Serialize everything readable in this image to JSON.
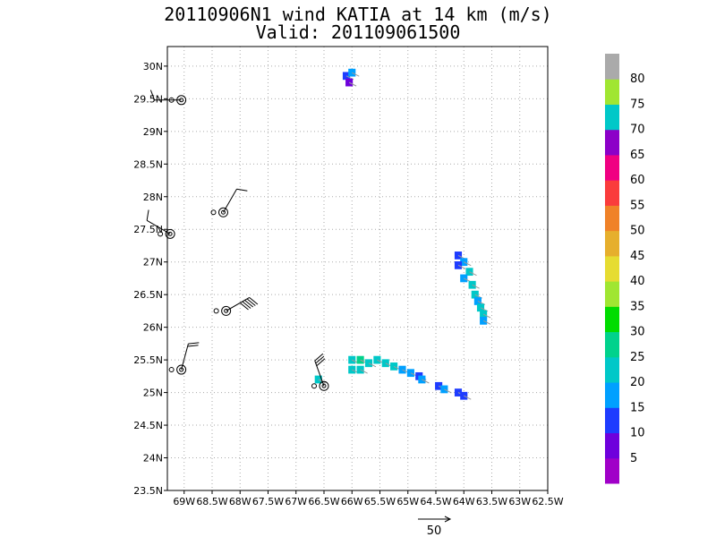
{
  "title_line1": "20110906N1 wind KATIA at 14 km (m/s)",
  "title_line2": "Valid: 201109061500",
  "chart_data": {
    "type": "heatmap",
    "title": "20110906N1 wind KATIA at 14 km (m/s)",
    "subtitle": "Valid: 201109061500",
    "xlim": [
      -69.3,
      -62.5
    ],
    "ylim": [
      23.5,
      30.3
    ],
    "grid": true,
    "x_ticks": [
      {
        "v": -69.0,
        "label": "69W"
      },
      {
        "v": -68.5,
        "label": "68.5W"
      },
      {
        "v": -68.0,
        "label": "68W"
      },
      {
        "v": -67.5,
        "label": "67.5W"
      },
      {
        "v": -67.0,
        "label": "67W"
      },
      {
        "v": -66.5,
        "label": "66.5W"
      },
      {
        "v": -66.0,
        "label": "66W"
      },
      {
        "v": -65.5,
        "label": "65.5W"
      },
      {
        "v": -65.0,
        "label": "65W"
      },
      {
        "v": -64.5,
        "label": "64.5W"
      },
      {
        "v": -64.0,
        "label": "64W"
      },
      {
        "v": -63.5,
        "label": "63.5W"
      },
      {
        "v": -63.0,
        "label": "63W"
      },
      {
        "v": -62.5,
        "label": "62.5W"
      }
    ],
    "y_ticks": [
      {
        "v": 23.5,
        "label": "23.5N"
      },
      {
        "v": 24.0,
        "label": "24N"
      },
      {
        "v": 24.5,
        "label": "24.5N"
      },
      {
        "v": 25.0,
        "label": "25N"
      },
      {
        "v": 25.5,
        "label": "25.5N"
      },
      {
        "v": 26.0,
        "label": "26N"
      },
      {
        "v": 26.5,
        "label": "26.5N"
      },
      {
        "v": 27.0,
        "label": "27N"
      },
      {
        "v": 27.5,
        "label": "27.5N"
      },
      {
        "v": 28.0,
        "label": "28N"
      },
      {
        "v": 28.5,
        "label": "28.5N"
      },
      {
        "v": 29.0,
        "label": "29N"
      },
      {
        "v": 29.5,
        "label": "29.5N"
      },
      {
        "v": 30.0,
        "label": "30N"
      }
    ],
    "colorbar": {
      "labels": [
        "5",
        "10",
        "15",
        "20",
        "25",
        "30",
        "35",
        "40",
        "45",
        "50",
        "55",
        "60",
        "65",
        "70",
        "75",
        "80"
      ],
      "colors": [
        "#a000c8",
        "#6e00dc",
        "#1e3cff",
        "#00a0ff",
        "#00c8c8",
        "#00d28c",
        "#00dc00",
        "#a0e632",
        "#e6dc32",
        "#e6af2d",
        "#f08228",
        "#fa3c3c",
        "#f00082",
        "#8c00c8",
        "#00c8c8",
        "#a0e632",
        "#aaaaaa"
      ]
    },
    "cells": [
      {
        "lon": -66.1,
        "lat": 29.85,
        "v": 12
      },
      {
        "lon": -66.05,
        "lat": 29.75,
        "v": 8
      },
      {
        "lon": -66.0,
        "lat": 29.9,
        "v": 15
      },
      {
        "lon": -64.1,
        "lat": 27.1,
        "v": 14
      },
      {
        "lon": -64.0,
        "lat": 27.0,
        "v": 18
      },
      {
        "lon": -64.1,
        "lat": 26.95,
        "v": 12
      },
      {
        "lon": -63.9,
        "lat": 26.85,
        "v": 20
      },
      {
        "lon": -64.0,
        "lat": 26.75,
        "v": 19
      },
      {
        "lon": -63.85,
        "lat": 26.65,
        "v": 21
      },
      {
        "lon": -63.8,
        "lat": 26.5,
        "v": 20
      },
      {
        "lon": -63.75,
        "lat": 26.4,
        "v": 19
      },
      {
        "lon": -63.7,
        "lat": 26.3,
        "v": 21
      },
      {
        "lon": -63.65,
        "lat": 26.2,
        "v": 20
      },
      {
        "lon": -63.65,
        "lat": 26.1,
        "v": 19
      },
      {
        "lon": -66.6,
        "lat": 25.2,
        "v": 20
      },
      {
        "lon": -66.0,
        "lat": 25.5,
        "v": 22
      },
      {
        "lon": -65.85,
        "lat": 25.5,
        "v": 26
      },
      {
        "lon": -65.7,
        "lat": 25.45,
        "v": 24
      },
      {
        "lon": -65.55,
        "lat": 25.5,
        "v": 22
      },
      {
        "lon": -65.4,
        "lat": 25.45,
        "v": 21
      },
      {
        "lon": -65.25,
        "lat": 25.4,
        "v": 20
      },
      {
        "lon": -66.0,
        "lat": 25.35,
        "v": 21
      },
      {
        "lon": -65.85,
        "lat": 25.35,
        "v": 20
      },
      {
        "lon": -65.1,
        "lat": 25.35,
        "v": 19
      },
      {
        "lon": -64.95,
        "lat": 25.3,
        "v": 17
      },
      {
        "lon": -64.8,
        "lat": 25.25,
        "v": 14
      },
      {
        "lon": -64.75,
        "lat": 25.2,
        "v": 16
      },
      {
        "lon": -64.45,
        "lat": 25.1,
        "v": 14
      },
      {
        "lon": -64.35,
        "lat": 25.05,
        "v": 17
      },
      {
        "lon": -64.1,
        "lat": 25.0,
        "v": 14
      },
      {
        "lon": -64.0,
        "lat": 24.95,
        "v": 13
      }
    ],
    "stations": [
      {
        "lon": -69.05,
        "lat": 29.48,
        "barb_dir": 270,
        "barb_kt": 10
      },
      {
        "lon": -68.3,
        "lat": 27.76,
        "barb_dir": 30,
        "barb_kt": 10
      },
      {
        "lon": -69.25,
        "lat": 27.43,
        "barb_dir": 300,
        "barb_kt": 10
      },
      {
        "lon": -68.25,
        "lat": 26.25,
        "barb_dir": 60,
        "barb_kt": 50
      },
      {
        "lon": -69.05,
        "lat": 25.35,
        "barb_dir": 15,
        "barb_kt": 20
      },
      {
        "lon": -66.5,
        "lat": 25.1,
        "barb_dir": 340,
        "barb_kt": 30
      }
    ],
    "vector_scale": {
      "label": "50"
    }
  }
}
